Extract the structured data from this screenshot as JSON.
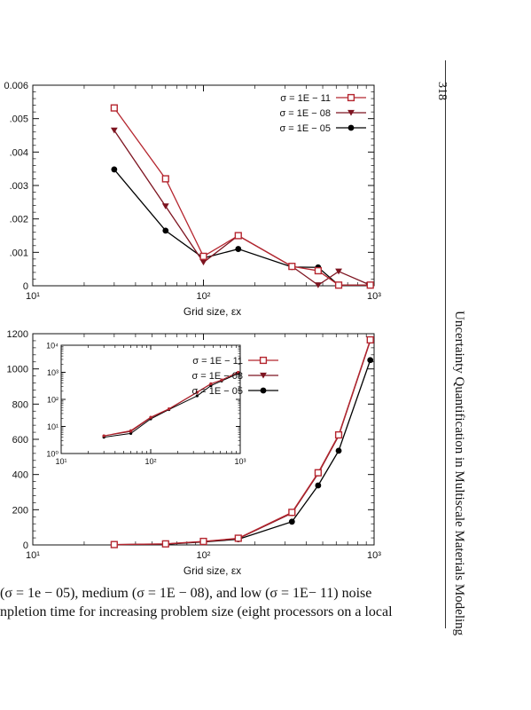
{
  "page_number": "318",
  "running_head": "Uncertainty Quantification in Multiscale Materials Modeling",
  "caption": {
    "line1": "(σ =  1e − 05), medium (σ =  1E − 08), and low (σ =  1E− 11) noise",
    "line2": "npletion time for increasing problem size (eight processors on a local"
  },
  "colors": {
    "sigma_1e11": "#b5262f",
    "sigma_1e08": "#7d1420",
    "sigma_1e05": "#000000"
  },
  "chart_data": [
    {
      "type": "line",
      "x_scale": "log",
      "xlim": [
        10,
        1000
      ],
      "ylim": [
        0,
        0.006
      ],
      "xlabel": "Grid size, εx",
      "x_ticks": [
        "10¹",
        "10²",
        "10³"
      ],
      "y_ticks": [
        "0",
        ".001",
        ".002",
        ".003",
        ".004",
        ".005",
        "0.006"
      ],
      "legend_position": "top-right",
      "series": [
        {
          "name": "σ = 1E − 11",
          "marker": "open-square",
          "x": [
            30,
            60,
            100,
            160,
            330,
            470,
            620,
            950
          ],
          "y": [
            0.00532,
            0.0032,
            0.00088,
            0.0015,
            0.00058,
            0.00045,
            2e-05,
            2e-05
          ]
        },
        {
          "name": "σ = 1E − 08",
          "marker": "triangle-down",
          "x": [
            30,
            60,
            100,
            160,
            330,
            470,
            620,
            950
          ],
          "y": [
            0.00465,
            0.00238,
            0.0007,
            0.0015,
            0.00058,
            2e-05,
            0.00043,
            2e-05
          ]
        },
        {
          "name": "σ = 1E − 05",
          "marker": "circle",
          "x": [
            30,
            60,
            100,
            160,
            330,
            470,
            620,
            950
          ],
          "y": [
            0.00348,
            0.00165,
            0.00083,
            0.0011,
            0.00056,
            0.00055,
            2e-05,
            2e-05
          ]
        }
      ]
    },
    {
      "type": "line",
      "x_scale": "log",
      "xlim": [
        10,
        1000
      ],
      "ylim": [
        0,
        1200
      ],
      "xlabel": "Grid size, εx",
      "x_ticks": [
        "10¹",
        "10²",
        "10³"
      ],
      "y_ticks": [
        "0",
        "200",
        "400",
        "600",
        "800",
        "1000",
        "1200"
      ],
      "legend_position": "top-right",
      "series": [
        {
          "name": "σ = 1E − 11",
          "marker": "open-square",
          "x": [
            30,
            60,
            100,
            160,
            330,
            470,
            620,
            950
          ],
          "y": [
            2,
            6,
            20,
            38,
            185,
            410,
            625,
            1165
          ]
        },
        {
          "name": "σ = 1E − 08",
          "marker": "triangle-down",
          "x": [
            30,
            60,
            100,
            160,
            330,
            470,
            620,
            950
          ],
          "y": [
            2,
            5,
            19,
            36,
            180,
            405,
            620,
            1160
          ]
        },
        {
          "name": "σ = 1E − 05",
          "marker": "circle",
          "x": [
            30,
            60,
            100,
            160,
            330,
            470,
            620,
            950
          ],
          "y": [
            1,
            4,
            17,
            32,
            132,
            338,
            535,
            1050
          ]
        }
      ],
      "inset": {
        "type": "line",
        "x_scale": "log",
        "y_scale": "log",
        "xlim": [
          10,
          1000
        ],
        "ylim": [
          1,
          10000
        ],
        "x_ticks": [
          "10¹",
          "10²",
          "10³"
        ],
        "y_ticks": [
          "10⁰",
          "10¹",
          "10²",
          "10³",
          "10⁴"
        ],
        "series": [
          {
            "name": "σ = 1E − 11",
            "x": [
              30,
              60,
              100,
              160,
              330,
              470,
              620,
              950
            ],
            "y": [
              4.5,
              7,
              22,
              45,
              185,
              380,
              520,
              1000
            ]
          },
          {
            "name": "σ = 1E − 08",
            "x": [
              30,
              60,
              100,
              160,
              330,
              470,
              620,
              950
            ],
            "y": [
              4.5,
              6.5,
              21,
              44,
              180,
              370,
              520,
              990
            ]
          },
          {
            "name": "σ = 1E − 05",
            "x": [
              30,
              60,
              100,
              160,
              330,
              470,
              620,
              950
            ],
            "y": [
              4,
              5.5,
              19,
              42,
              135,
              320,
              480,
              900
            ]
          }
        ]
      }
    }
  ]
}
